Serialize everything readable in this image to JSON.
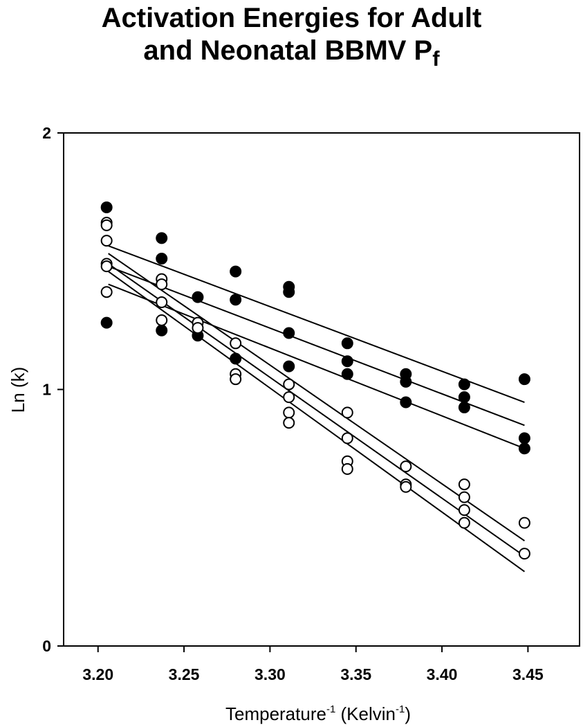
{
  "chart_data": {
    "type": "scatter",
    "title_line1": "Activation Energies for Adult",
    "title_line2_main": "and Neonatal BBMV P",
    "title_line2_sub": "f",
    "xlabel_main": "Temperature",
    "xlabel_exp1": "-1",
    "xlabel_mid": " (Kelvin",
    "xlabel_exp2": "-1",
    "xlabel_end": ")",
    "ylabel": "Ln (k)",
    "xlim": [
      3.18,
      3.48
    ],
    "ylim": [
      0,
      2
    ],
    "xticks": [
      3.2,
      3.25,
      3.3,
      3.35,
      3.4,
      3.45
    ],
    "xtick_labels": [
      "3.20",
      "3.25",
      "3.30",
      "3.35",
      "3.40",
      "3.45"
    ],
    "yticks": [
      0,
      1,
      2
    ],
    "ytick_labels": [
      "0",
      "1",
      "2"
    ],
    "grid": false,
    "series": [
      {
        "marker": "filled-circle",
        "color": "#000000",
        "points": [
          [
            3.205,
            1.71
          ],
          [
            3.205,
            1.26
          ],
          [
            3.237,
            1.59
          ],
          [
            3.237,
            1.51
          ],
          [
            3.237,
            1.23
          ],
          [
            3.258,
            1.36
          ],
          [
            3.258,
            1.21
          ],
          [
            3.28,
            1.46
          ],
          [
            3.28,
            1.35
          ],
          [
            3.28,
            1.12
          ],
          [
            3.311,
            1.4
          ],
          [
            3.311,
            1.38
          ],
          [
            3.311,
            1.22
          ],
          [
            3.311,
            1.09
          ],
          [
            3.345,
            1.18
          ],
          [
            3.345,
            1.11
          ],
          [
            3.345,
            1.06
          ],
          [
            3.379,
            1.06
          ],
          [
            3.379,
            1.03
          ],
          [
            3.379,
            0.95
          ],
          [
            3.413,
            1.02
          ],
          [
            3.413,
            0.97
          ],
          [
            3.413,
            0.93
          ],
          [
            3.448,
            1.04
          ],
          [
            3.448,
            0.81
          ],
          [
            3.448,
            0.77
          ]
        ],
        "fit_lines": [
          [
            [
              3.206,
              1.56
            ],
            [
              3.448,
              0.95
            ]
          ],
          [
            [
              3.206,
              1.48
            ],
            [
              3.448,
              0.86
            ]
          ],
          [
            [
              3.206,
              1.41
            ],
            [
              3.448,
              0.77
            ]
          ]
        ]
      },
      {
        "marker": "open-circle",
        "color": "#000000",
        "points": [
          [
            3.205,
            1.65
          ],
          [
            3.205,
            1.64
          ],
          [
            3.205,
            1.58
          ],
          [
            3.205,
            1.49
          ],
          [
            3.205,
            1.48
          ],
          [
            3.205,
            1.38
          ],
          [
            3.237,
            1.43
          ],
          [
            3.237,
            1.41
          ],
          [
            3.237,
            1.34
          ],
          [
            3.237,
            1.27
          ],
          [
            3.258,
            1.26
          ],
          [
            3.258,
            1.24
          ],
          [
            3.28,
            1.18
          ],
          [
            3.28,
            1.06
          ],
          [
            3.28,
            1.04
          ],
          [
            3.311,
            1.02
          ],
          [
            3.311,
            0.97
          ],
          [
            3.311,
            0.91
          ],
          [
            3.311,
            0.87
          ],
          [
            3.345,
            0.91
          ],
          [
            3.345,
            0.81
          ],
          [
            3.345,
            0.72
          ],
          [
            3.345,
            0.69
          ],
          [
            3.379,
            0.7
          ],
          [
            3.379,
            0.63
          ],
          [
            3.379,
            0.62
          ],
          [
            3.413,
            0.63
          ],
          [
            3.413,
            0.58
          ],
          [
            3.413,
            0.53
          ],
          [
            3.413,
            0.48
          ],
          [
            3.448,
            0.48
          ],
          [
            3.448,
            0.36
          ]
        ],
        "fit_lines": [
          [
            [
              3.206,
              1.53
            ],
            [
              3.448,
              0.41
            ]
          ],
          [
            [
              3.206,
              1.49
            ],
            [
              3.448,
              0.35
            ]
          ],
          [
            [
              3.206,
              1.46
            ],
            [
              3.448,
              0.29
            ]
          ]
        ]
      }
    ]
  }
}
